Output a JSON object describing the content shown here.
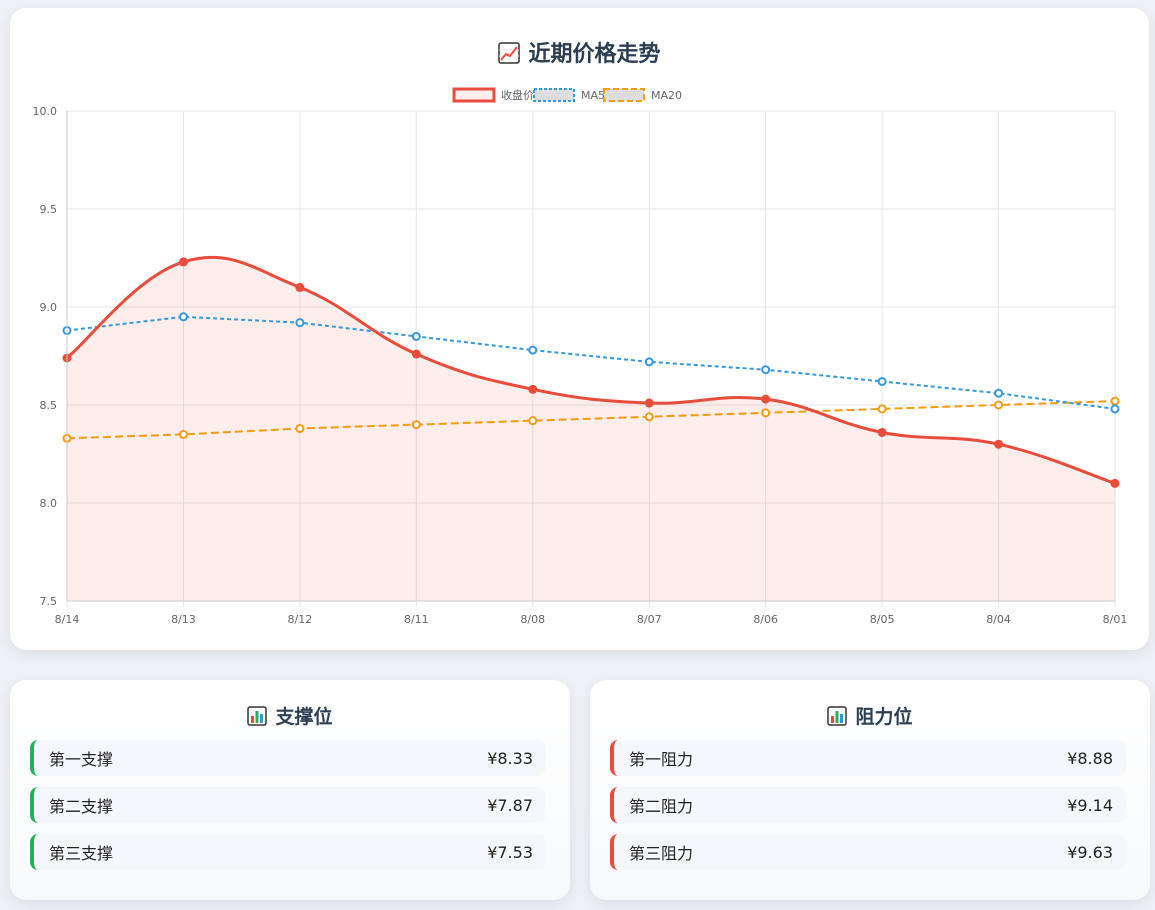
{
  "chart_title": "近期价格走势",
  "chart_title_icon": "chart-increasing-icon",
  "chart_data": {
    "type": "line",
    "title": "近期价格走势",
    "categories": [
      "8/14",
      "8/13",
      "8/12",
      "8/11",
      "8/08",
      "8/07",
      "8/06",
      "8/05",
      "8/04",
      "8/01"
    ],
    "ylim": [
      7.5,
      10.0
    ],
    "yticks": [
      "10.0",
      "9.5",
      "9.0",
      "8.5",
      "8.0",
      "7.5"
    ],
    "ytick_values": [
      10.0,
      9.5,
      9.0,
      8.5,
      8.0,
      7.5
    ],
    "grid": true,
    "legend_position": "top-center",
    "series": [
      {
        "name": "收盘价",
        "values": [
          8.74,
          9.23,
          9.1,
          8.76,
          8.58,
          8.51,
          8.53,
          8.36,
          8.3,
          8.1
        ],
        "color": "#e74c3c",
        "fill": "rgba(231,76,60,0.10)",
        "style": "solid"
      },
      {
        "name": "MA5",
        "values": [
          8.88,
          8.95,
          8.92,
          8.85,
          8.78,
          8.72,
          8.68,
          8.62,
          8.56,
          8.48
        ],
        "color": "#3498db",
        "style": "dotted"
      },
      {
        "name": "MA20",
        "values": [
          8.33,
          8.35,
          8.38,
          8.4,
          8.42,
          8.44,
          8.46,
          8.48,
          8.5,
          8.52
        ],
        "color": "#f39c12",
        "style": "dashed"
      }
    ]
  },
  "support": {
    "title": "支撑位",
    "icon": "bar-chart-icon",
    "items": [
      {
        "label": "第一支撑",
        "value": "¥8.33"
      },
      {
        "label": "第二支撑",
        "value": "¥7.87"
      },
      {
        "label": "第三支撑",
        "value": "¥7.53"
      }
    ]
  },
  "resistance": {
    "title": "阻力位",
    "icon": "bar-chart-icon",
    "items": [
      {
        "label": "第一阻力",
        "value": "¥8.88"
      },
      {
        "label": "第二阻力",
        "value": "¥9.14"
      },
      {
        "label": "第三阻力",
        "value": "¥9.63"
      }
    ]
  },
  "colors": {
    "support_accent": "#27ae60",
    "resistance_accent": "#e74c3c",
    "title_text": "#2c3e50"
  }
}
